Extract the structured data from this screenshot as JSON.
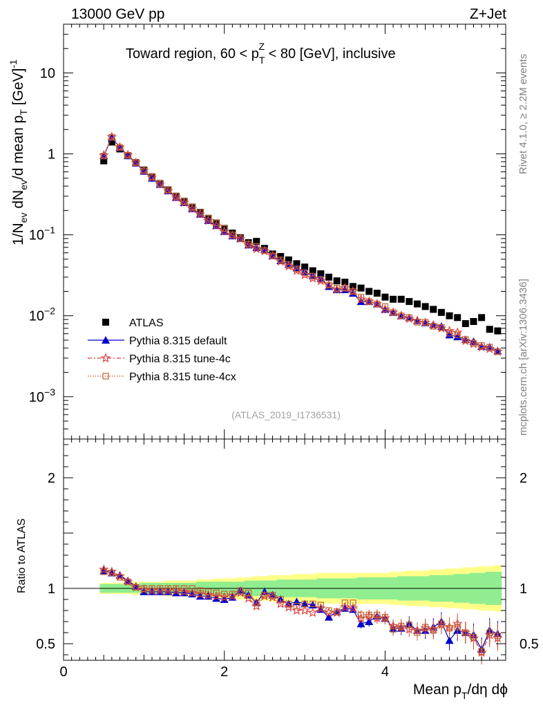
{
  "header": {
    "left": "13000 GeV pp",
    "right": "Z+Jet",
    "title": "Toward region, 60 < p",
    "title_sup": "Z",
    "title_sub": "T",
    "title_tail": " < 80 [GeV], inclusive"
  },
  "side_text": {
    "rivet": "Rivet 4.1.0, ≥ 2.2M events",
    "mcplots": "mcplots.cern.ch [arXiv:1306.3436]"
  },
  "watermark": "(ATLAS_2019_I1736531)",
  "ylabel_main": {
    "p1": "1/N",
    "s1": "ev",
    "p2": " dN",
    "s2": "ev",
    "p3": "/d mean p",
    "s3": "T",
    "p4": " [GeV]",
    "sup": "-1"
  },
  "ylabel_ratio": "Ratio to ATLAS",
  "xlabel": {
    "p1": "Mean p",
    "s1": "T",
    "p2": "/dη dϕ"
  },
  "legend": [
    {
      "name": "ATLAS",
      "color": "#000000",
      "marker": "square"
    },
    {
      "name": "Pythia 8.315 default",
      "color": "#0000cc",
      "marker": "triangle"
    },
    {
      "name": "Pythia 8.315 tune-4c",
      "color": "#e04040",
      "marker": "star"
    },
    {
      "name": "Pythia 8.315 tune-4cx",
      "color": "#c06030",
      "marker": "open-square"
    }
  ],
  "ticks": {
    "main_y": [
      "10",
      "1",
      "10",
      "10",
      "10"
    ],
    "main_y_exp": [
      "",
      "",
      "−1",
      "−2",
      "−3"
    ],
    "ratio_y": [
      "0.5",
      "1",
      "2"
    ],
    "x": [
      "0",
      "2",
      "4"
    ]
  },
  "chart_data": {
    "type": "scatter",
    "x": [
      0.5,
      0.6,
      0.7,
      0.8,
      0.9,
      1.0,
      1.1,
      1.2,
      1.3,
      1.4,
      1.5,
      1.6,
      1.7,
      1.8,
      1.9,
      2.0,
      2.1,
      2.2,
      2.3,
      2.4,
      2.5,
      2.6,
      2.7,
      2.8,
      2.9,
      3.0,
      3.1,
      3.2,
      3.3,
      3.4,
      3.5,
      3.6,
      3.7,
      3.8,
      3.9,
      4.0,
      4.1,
      4.2,
      4.3,
      4.4,
      4.5,
      4.6,
      4.7,
      4.8,
      4.9,
      5.0,
      5.1,
      5.2,
      5.3,
      5.4
    ],
    "xlim": [
      0,
      5.5
    ],
    "main": {
      "ylim": [
        0.0003,
        40
      ],
      "yscale": "log",
      "series": [
        {
          "name": "ATLAS",
          "values": [
            0.82,
            1.4,
            1.15,
            0.95,
            0.78,
            0.63,
            0.52,
            0.43,
            0.36,
            0.3,
            0.26,
            0.22,
            0.19,
            0.16,
            0.14,
            0.12,
            0.105,
            0.092,
            0.08,
            0.083,
            0.068,
            0.058,
            0.054,
            0.049,
            0.044,
            0.04,
            0.036,
            0.033,
            0.03,
            0.027,
            0.026,
            0.023,
            0.022,
            0.02,
            0.019,
            0.017,
            0.016,
            0.016,
            0.015,
            0.014,
            0.013,
            0.012,
            0.011,
            0.01,
            0.0095,
            0.008,
            0.0085,
            0.0095,
            0.0068,
            0.0065
          ]
        },
        {
          "name": "Pythia 8.315 default",
          "values": [
            0.95,
            1.6,
            1.2,
            0.95,
            0.77,
            0.61,
            0.5,
            0.42,
            0.35,
            0.29,
            0.25,
            0.21,
            0.18,
            0.15,
            0.13,
            0.11,
            0.097,
            0.09,
            0.075,
            0.07,
            0.066,
            0.055,
            0.048,
            0.043,
            0.039,
            0.035,
            0.031,
            0.029,
            0.023,
            0.021,
            0.021,
            0.019,
            0.015,
            0.015,
            0.014,
            0.012,
            0.011,
            0.01,
            0.0095,
            0.0087,
            0.0082,
            0.0078,
            0.0074,
            0.0058,
            0.0055,
            0.0051,
            0.0048,
            0.0042,
            0.0041,
            0.0037
          ]
        },
        {
          "name": "Pythia 8.315 tune-4c",
          "values": [
            0.96,
            1.62,
            1.21,
            0.97,
            0.78,
            0.62,
            0.51,
            0.42,
            0.35,
            0.29,
            0.25,
            0.21,
            0.18,
            0.15,
            0.13,
            0.11,
            0.098,
            0.089,
            0.075,
            0.067,
            0.063,
            0.055,
            0.047,
            0.041,
            0.036,
            0.032,
            0.029,
            0.027,
            0.024,
            0.021,
            0.022,
            0.02,
            0.016,
            0.015,
            0.014,
            0.012,
            0.011,
            0.01,
            0.0092,
            0.0087,
            0.0082,
            0.0076,
            0.007,
            0.0065,
            0.0062,
            0.0049,
            0.0045,
            0.0041,
            0.0039,
            0.0036
          ]
        },
        {
          "name": "Pythia 8.315 tune-4cx",
          "values": [
            0.94,
            1.6,
            1.2,
            0.96,
            0.78,
            0.62,
            0.52,
            0.43,
            0.36,
            0.3,
            0.26,
            0.22,
            0.19,
            0.16,
            0.14,
            0.12,
            0.1,
            0.09,
            0.077,
            0.072,
            0.064,
            0.055,
            0.049,
            0.043,
            0.038,
            0.034,
            0.031,
            0.028,
            0.024,
            0.022,
            0.022,
            0.02,
            0.017,
            0.015,
            0.014,
            0.013,
            0.011,
            0.01,
            0.0095,
            0.0083,
            0.0083,
            0.0074,
            0.0072,
            0.0061,
            0.0058,
            0.0051,
            0.0046,
            0.0043,
            0.0041,
            0.0036
          ]
        }
      ]
    },
    "ratio": {
      "ylim": [
        0.35,
        2.35
      ],
      "ref": 1,
      "series": [
        {
          "name": "Pythia 8.315 default",
          "values": [
            1.16,
            1.14,
            1.12,
            1.07,
            1.02,
            0.97,
            0.97,
            0.97,
            0.97,
            0.96,
            0.96,
            0.95,
            0.93,
            0.93,
            0.91,
            0.9,
            0.92,
            0.98,
            0.94,
            0.87,
            0.97,
            0.94,
            0.9,
            0.86,
            0.88,
            0.86,
            0.85,
            0.81,
            0.74,
            0.79,
            0.82,
            0.81,
            0.68,
            0.7,
            0.75,
            0.73,
            0.64,
            0.64,
            0.68,
            0.62,
            0.62,
            0.65,
            0.7,
            0.53,
            0.62,
            0.6,
            0.58,
            0.45,
            0.62,
            0.59
          ]
        },
        {
          "name": "Pythia 8.315 tune-4c",
          "values": [
            1.17,
            1.15,
            1.11,
            1.06,
            1.01,
            0.99,
            0.98,
            0.98,
            0.98,
            0.98,
            0.97,
            0.96,
            0.95,
            0.94,
            0.93,
            0.92,
            0.93,
            0.96,
            0.91,
            0.84,
            0.93,
            0.92,
            0.86,
            0.83,
            0.8,
            0.8,
            0.78,
            0.82,
            0.78,
            0.78,
            0.83,
            0.82,
            0.73,
            0.75,
            0.73,
            0.73,
            0.66,
            0.65,
            0.63,
            0.62,
            0.64,
            0.63,
            0.67,
            0.65,
            0.68,
            0.6,
            0.55,
            0.42,
            0.58,
            0.55
          ]
        },
        {
          "name": "Pythia 8.315 tune-4cx",
          "values": [
            1.15,
            1.14,
            1.1,
            1.06,
            1.01,
            1.0,
            1.0,
            1.0,
            1.0,
            1.0,
            1.0,
            1.0,
            0.98,
            0.97,
            0.96,
            0.95,
            0.95,
            0.98,
            0.96,
            0.87,
            0.94,
            0.94,
            0.9,
            0.86,
            0.84,
            0.86,
            0.86,
            0.85,
            0.8,
            0.79,
            0.87,
            0.87,
            0.76,
            0.76,
            0.76,
            0.74,
            0.63,
            0.66,
            0.67,
            0.6,
            0.65,
            0.62,
            0.68,
            0.64,
            0.65,
            0.6,
            0.56,
            0.43,
            0.6,
            0.57
          ]
        }
      ],
      "band_inner": [
        0.96,
        0.96,
        0.96,
        0.96,
        0.96,
        0.95,
        0.95,
        0.95,
        0.95,
        0.95,
        0.95,
        0.95,
        0.94,
        0.94,
        0.94,
        0.94,
        0.94,
        0.94,
        0.93,
        0.93,
        0.93,
        0.93,
        0.92,
        0.92,
        0.92,
        0.92,
        0.92,
        0.91,
        0.91,
        0.91,
        0.91,
        0.91,
        0.9,
        0.9,
        0.9,
        0.9,
        0.9,
        0.89,
        0.89,
        0.89,
        0.89,
        0.88,
        0.88,
        0.88,
        0.87,
        0.87,
        0.86,
        0.86,
        0.85,
        0.85
      ],
      "band_outer": [
        0.95,
        0.95,
        0.95,
        0.95,
        0.94,
        0.94,
        0.94,
        0.94,
        0.93,
        0.93,
        0.93,
        0.93,
        0.92,
        0.92,
        0.91,
        0.91,
        0.91,
        0.9,
        0.9,
        0.89,
        0.89,
        0.88,
        0.88,
        0.88,
        0.87,
        0.87,
        0.87,
        0.86,
        0.86,
        0.86,
        0.86,
        0.86,
        0.86,
        0.86,
        0.86,
        0.86,
        0.85,
        0.85,
        0.84,
        0.84,
        0.84,
        0.83,
        0.83,
        0.82,
        0.82,
        0.81,
        0.81,
        0.8,
        0.8,
        0.79
      ]
    },
    "xlabel": "Mean pT/dη dϕ",
    "ylabel": "1/Nev dNev/d mean pT [GeV]-1",
    "title": "Toward region, 60 < pTZ < 80 [GeV], inclusive"
  }
}
